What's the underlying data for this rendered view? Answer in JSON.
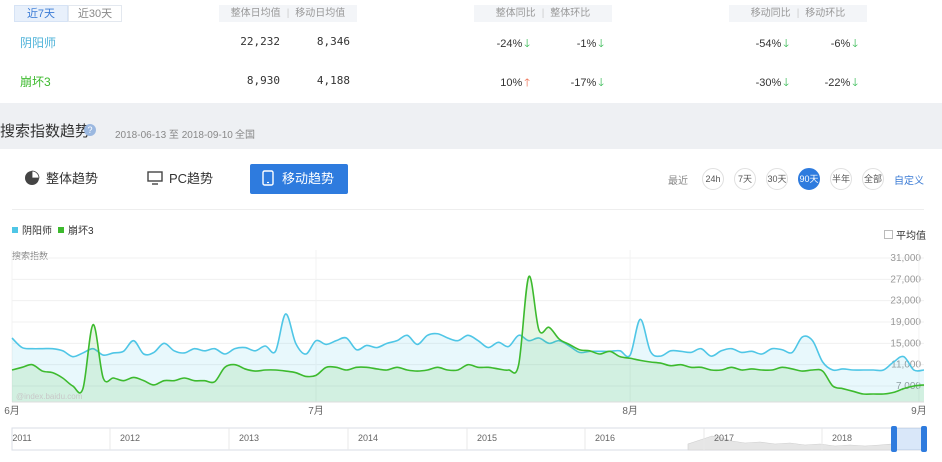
{
  "period_tabs": [
    "近7天",
    "近30天"
  ],
  "headers": {
    "overall": [
      "整体日均值",
      "移动日均值"
    ],
    "overall_change": [
      "整体同比",
      "整体环比"
    ],
    "mobile_change": [
      "移动同比",
      "移动环比"
    ]
  },
  "rows": [
    {
      "name": "阴阳师",
      "overall_avg": "22,232",
      "mobile_avg": "8,346",
      "yoy": "-24%",
      "yoy_dir": "down",
      "mom": "-1%",
      "mom_dir": "down",
      "m_yoy": "-54%",
      "m_yoy_dir": "down",
      "m_mom": "-6%",
      "m_mom_dir": "down"
    },
    {
      "name": "崩坏3",
      "overall_avg": "8,930",
      "mobile_avg": "4,188",
      "yoy": "10%",
      "yoy_dir": "up",
      "mom": "-17%",
      "mom_dir": "down",
      "m_yoy": "-30%",
      "m_yoy_dir": "down",
      "m_mom": "-22%",
      "m_mom_dir": "down"
    }
  ],
  "section": {
    "title": "搜索指数趋势",
    "date_range": "2018-06-13 至 2018-09-10",
    "region": "全国"
  },
  "trend_tabs": [
    "整体趋势",
    "PC趋势",
    "移动趋势"
  ],
  "range_label": "最近",
  "ranges": [
    "24h",
    "7天",
    "30天",
    "90天",
    "半年",
    "全部"
  ],
  "custom": "自定义",
  "avg_label": "平均值",
  "watermark": "@index.baidu.com",
  "colors": {
    "series1": "#4fc6e6",
    "series2": "#3dba2e",
    "accent": "#2e7bde"
  },
  "chart_data": {
    "type": "line",
    "ylabel": "搜索指数",
    "yticks": [
      7000,
      11000,
      15000,
      19000,
      23000,
      27000,
      31000
    ],
    "ytick_labels": [
      "7,000",
      "11,000",
      "15,000",
      "19,000",
      "23,000",
      "27,000",
      "31,000"
    ],
    "ylim": [
      4000,
      32500
    ],
    "xlim": [
      0,
      90
    ],
    "xticks": [
      {
        "x": 0,
        "label": "6月"
      },
      {
        "x": 30,
        "label": "7月"
      },
      {
        "x": 61,
        "label": "8月"
      },
      {
        "x": 89.5,
        "label": "9月"
      }
    ],
    "series": [
      {
        "name": "阴阳师",
        "x": [
          0,
          1,
          2,
          3,
          4,
          5,
          6,
          7,
          8,
          9,
          10,
          11,
          12,
          13,
          14,
          15,
          16,
          17,
          18,
          19,
          20,
          21,
          22,
          23,
          24,
          25,
          26,
          27,
          28,
          29,
          30,
          31,
          32,
          33,
          34,
          35,
          36,
          37,
          38,
          39,
          40,
          41,
          42,
          43,
          44,
          45,
          46,
          47,
          48,
          49,
          50,
          51,
          52,
          53,
          54,
          55,
          56,
          57,
          58,
          59,
          60,
          61,
          62,
          63,
          64,
          65,
          66,
          67,
          68,
          69,
          70,
          71,
          72,
          73,
          74,
          75,
          76,
          77,
          78,
          79,
          80,
          81,
          82,
          83,
          84,
          85,
          86,
          87,
          88,
          89,
          90
        ],
        "values": [
          16000,
          14200,
          14000,
          14000,
          14000,
          13600,
          12500,
          13200,
          14000,
          12800,
          13200,
          13500,
          15500,
          13000,
          13300,
          15000,
          13600,
          13200,
          14000,
          13600,
          14000,
          13000,
          14000,
          14200,
          13600,
          14500,
          13500,
          20500,
          15000,
          13000,
          15500,
          14800,
          15500,
          16000,
          13800,
          14600,
          14200,
          15000,
          15500,
          16500,
          14800,
          16500,
          16800,
          16000,
          15500,
          16500,
          15500,
          14200,
          15200,
          14400,
          16500,
          15500,
          16000,
          15000,
          15500,
          14500,
          13300,
          13500,
          13500,
          13500,
          13600,
          12800,
          19500,
          13500,
          12600,
          13600,
          13500,
          13300,
          14000,
          12600,
          13600,
          14000,
          13300,
          13500,
          13000,
          14000,
          13800,
          13300,
          16200,
          15500,
          11500,
          10000,
          10200,
          10000,
          10000,
          10000,
          10000,
          11500,
          12500,
          10000,
          10000
        ]
      },
      {
        "name": "崩坏3",
        "x": [
          0,
          1,
          2,
          3,
          4,
          5,
          6,
          7,
          8,
          9,
          10,
          11,
          12,
          13,
          14,
          15,
          16,
          17,
          18,
          19,
          20,
          21,
          22,
          23,
          24,
          25,
          26,
          27,
          28,
          29,
          30,
          31,
          32,
          33,
          34,
          35,
          36,
          37,
          38,
          39,
          40,
          41,
          42,
          43,
          44,
          45,
          46,
          47,
          48,
          49,
          50,
          51,
          52,
          53,
          54,
          55,
          56,
          57,
          58,
          59,
          60,
          61,
          62,
          63,
          64,
          65,
          66,
          67,
          68,
          69,
          70,
          71,
          72,
          73,
          74,
          75,
          76,
          77,
          78,
          79,
          80,
          81,
          82,
          83,
          84,
          85,
          86,
          87,
          88,
          89,
          90
        ],
        "values": [
          10000,
          10500,
          11000,
          9800,
          9500,
          8500,
          7000,
          6500,
          18500,
          8500,
          8500,
          8000,
          8600,
          8000,
          7200,
          8000,
          8000,
          8500,
          8000,
          8000,
          7800,
          10500,
          11000,
          10200,
          9800,
          10000,
          10000,
          9800,
          9500,
          8800,
          9000,
          10500,
          10500,
          10000,
          10500,
          10500,
          10200,
          10000,
          10500,
          10000,
          9800,
          10000,
          10500,
          10000,
          10000,
          11000,
          10500,
          10500,
          10200,
          10000,
          11000,
          27500,
          17500,
          18000,
          15800,
          14800,
          13800,
          13600,
          13000,
          13500,
          12500,
          12200,
          11800,
          11500,
          11300,
          10800,
          11000,
          10500,
          10500,
          10000,
          10000,
          10500,
          10000,
          10200,
          10000,
          10000,
          10500,
          10200,
          9800,
          10000,
          9800,
          7000,
          6500,
          6000,
          5500,
          5500,
          5500,
          5800,
          6500,
          7000,
          7200
        ]
      }
    ]
  },
  "timeline": {
    "years": [
      "2011",
      "2012",
      "2013",
      "2014",
      "2015",
      "2016",
      "2017",
      "2018"
    ]
  }
}
